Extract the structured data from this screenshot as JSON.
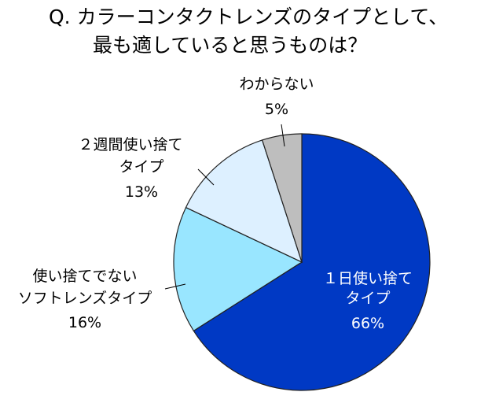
{
  "chart_data": {
    "type": "pie",
    "title": [
      "Q. カラーコンタクトレンズのタイプとして、",
      "最も適していると思うものは？"
    ],
    "start": "top",
    "direction": "clockwise",
    "slices": [
      {
        "label": [
          "１日使い捨て",
          "タイプ"
        ],
        "value": 66,
        "pct": "66%",
        "color": "#0039C4",
        "text_color": "#ffffff"
      },
      {
        "label": [
          "使い捨てでない",
          "ソフトレンズタイプ"
        ],
        "value": 16,
        "pct": "16%",
        "color": "#99E6FF",
        "text_color": "#000000"
      },
      {
        "label": [
          "２週間使い捨て",
          "タイプ"
        ],
        "value": 13,
        "pct": "13%",
        "color": "#DDF0FF",
        "text_color": "#000000"
      },
      {
        "label": [
          "わからない"
        ],
        "value": 5,
        "pct": "5%",
        "color": "#BEBEBE",
        "text_color": "#000000"
      }
    ]
  }
}
